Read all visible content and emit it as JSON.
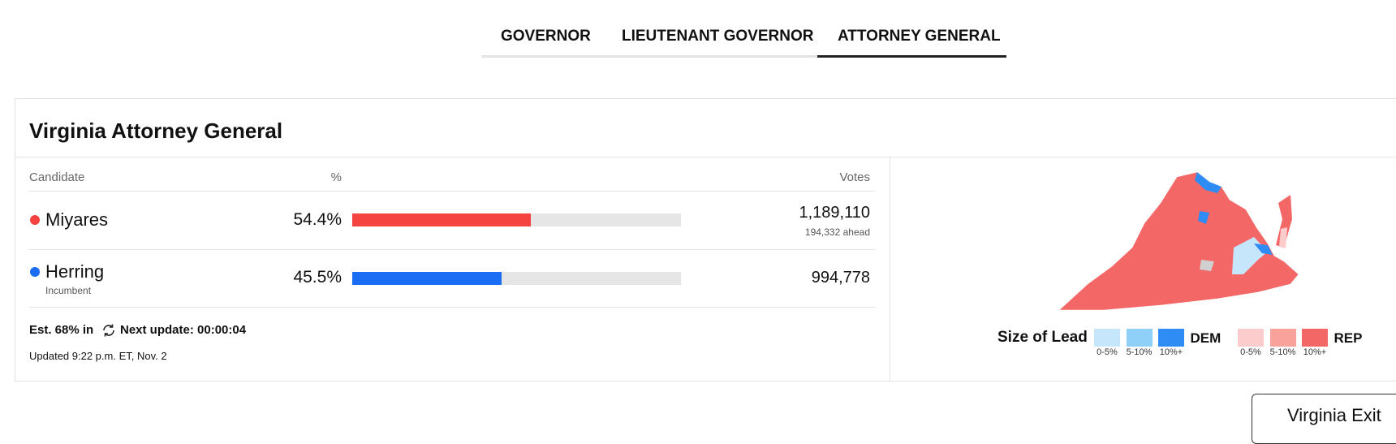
{
  "tabs": [
    "GOVERNOR",
    "LIEUTENANT GOVERNOR",
    "ATTORNEY GENERAL"
  ],
  "race": {
    "title": "Virginia Attorney General",
    "columns": {
      "candidate": "Candidate",
      "percent": "%",
      "votes": "Votes"
    },
    "candidates": [
      {
        "name": "Miyares",
        "party": "REP",
        "color": "#f5443f",
        "percent": 54.4,
        "percent_label": "54.4%",
        "votes": "1,189,110",
        "note": "194,332 ahead"
      },
      {
        "name": "Herring",
        "party": "DEM",
        "color": "#1b6ef3",
        "percent": 45.5,
        "percent_label": "45.5%",
        "votes": "994,778",
        "note": "Incumbent"
      }
    ],
    "reporting": "Est. 68% in",
    "next_update": "Next update: 00:00:04",
    "updated": "Updated 9:22 p.m. ET, Nov. 2"
  },
  "legend": {
    "title": "Size of Lead",
    "groups": [
      {
        "name": "DEM",
        "items": [
          {
            "label": "0-5%",
            "color": "#c6e6fb"
          },
          {
            "label": "5-10%",
            "color": "#8fd0f8"
          },
          {
            "label": "10%+",
            "color": "#2f8cf5"
          }
        ]
      },
      {
        "name": "REP",
        "items": [
          {
            "label": "0-5%",
            "color": "#fccbcb"
          },
          {
            "label": "5-10%",
            "color": "#f9a29c"
          },
          {
            "label": "10%+",
            "color": "#f46767"
          }
        ]
      }
    ]
  },
  "button": "Virginia Exit"
}
